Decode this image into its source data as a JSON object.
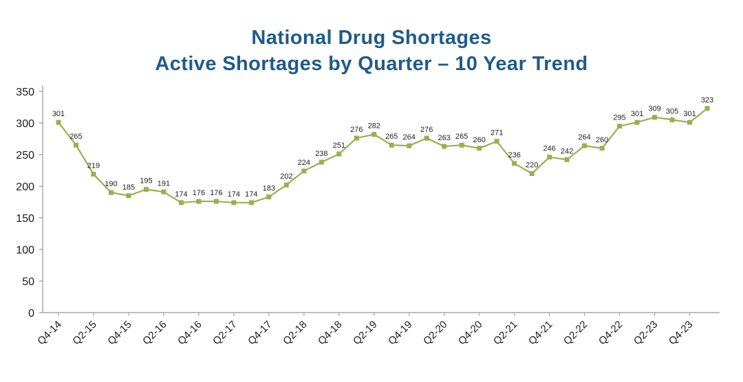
{
  "title": {
    "line1": "National Drug Shortages",
    "line2": "Active Shortages by Quarter – 10 Year Trend"
  },
  "chart_data": {
    "type": "line",
    "series_name": "Active Shortages",
    "n_points": 38,
    "values": [
      301,
      265,
      219,
      190,
      185,
      195,
      191,
      174,
      176,
      176,
      174,
      174,
      183,
      202,
      224,
      238,
      251,
      276,
      282,
      265,
      264,
      276,
      263,
      265,
      260,
      271,
      236,
      220,
      246,
      242,
      264,
      260,
      295,
      301,
      309,
      305,
      301,
      323
    ],
    "x_tick_labels": [
      "Q4-14",
      "Q2-15",
      "Q4-15",
      "Q2-16",
      "Q4-16",
      "Q2-17",
      "Q4-17",
      "Q2-18",
      "Q4-18",
      "Q2-19",
      "Q4-19",
      "Q2-20",
      "Q4-20",
      "Q2-21",
      "Q4-21",
      "Q2-22",
      "Q4-22",
      "Q2-23",
      "Q4-23"
    ],
    "tick_every": 2,
    "ylim": [
      0,
      350
    ],
    "y_ticks": [
      0,
      50,
      100,
      150,
      200,
      250,
      300,
      350
    ],
    "grid": false,
    "legend": "none",
    "data_labels_shown": true,
    "colors": {
      "title": "#1e5b8b",
      "line": "#94b24e",
      "marker": "#94b24e",
      "label": "#222222",
      "axis": "#a8a8a8"
    }
  }
}
